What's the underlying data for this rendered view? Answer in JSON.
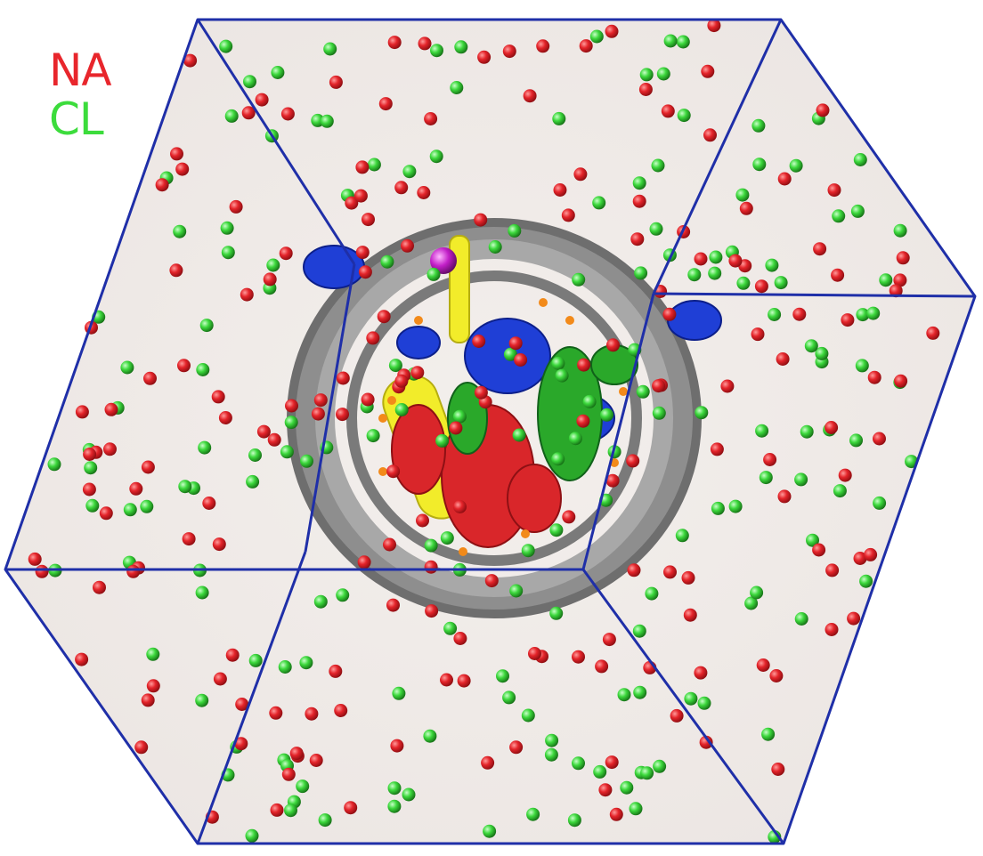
{
  "legend": {
    "items": [
      {
        "label": "NA",
        "color": "#e8262c"
      },
      {
        "label": "CL",
        "color": "#3cdc3c"
      }
    ]
  },
  "colors": {
    "box_edge": "#1f2fa8",
    "solvent": "#f1ecea",
    "na_ion": "#e4242a",
    "cl_ion": "#3cd83c",
    "dna_backbone": "#8e8e8e",
    "histone_red": "#d9262a",
    "histone_yellow": "#f2ec2a",
    "histone_blue": "#1f3fd6",
    "histone_green": "#2aa82a",
    "highlight_ion": "#c21fc8",
    "side_chain": "#f28a1a"
  },
  "icons": [
    "na-ion-sphere",
    "cl-ion-sphere",
    "nucleosome-model",
    "simulation-box"
  ]
}
